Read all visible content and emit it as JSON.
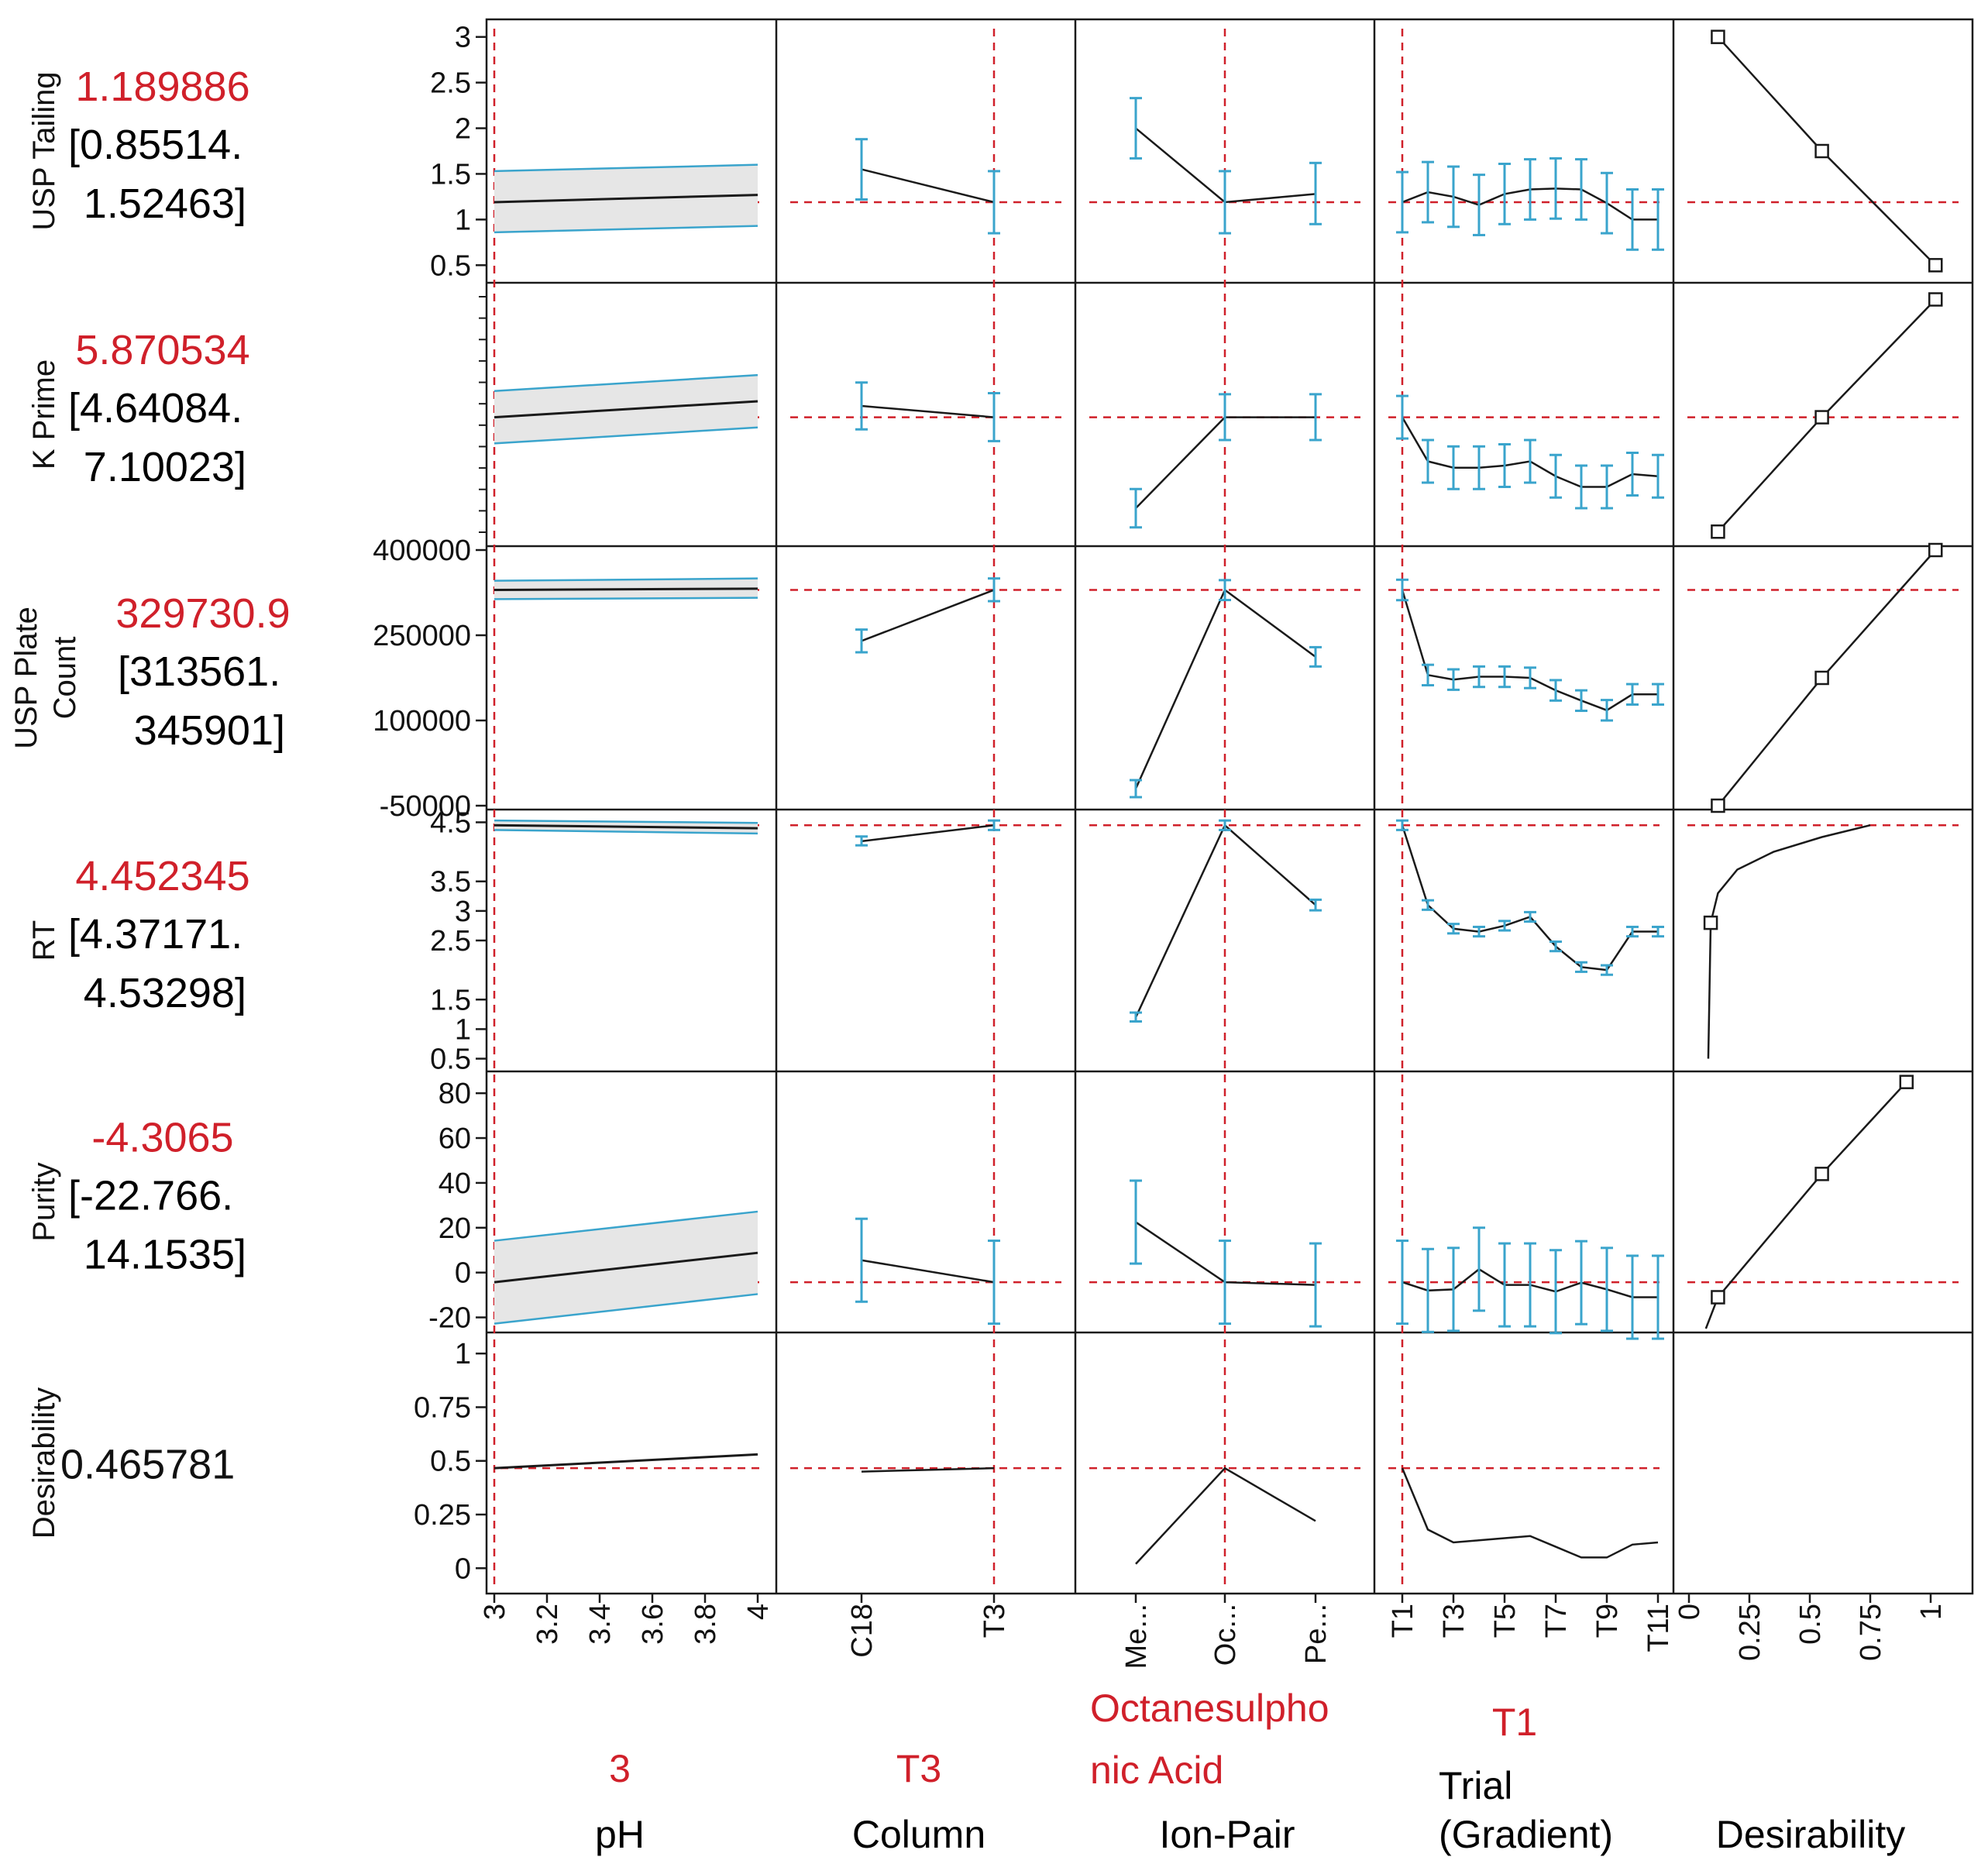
{
  "chart_data": {
    "type": "prediction_profiler",
    "factors": [
      {
        "key": "ph",
        "name": "pH",
        "current": "3",
        "ticks": [
          "3",
          "3.2",
          "3.4",
          "3.6",
          "3.8",
          "4"
        ],
        "range": [
          3,
          4
        ]
      },
      {
        "key": "column",
        "name": "Column",
        "current": "T3",
        "ticks": [
          "C18",
          "T3"
        ]
      },
      {
        "key": "ionpair",
        "name": "Ion-Pair",
        "current_lines": [
          "Octanesulpho",
          "nic Acid"
        ],
        "ticks": [
          "Me...",
          "Oc...",
          "Pe..."
        ]
      },
      {
        "key": "trial",
        "name_lines": [
          "Trial",
          "(Gradient)"
        ],
        "current": "T1",
        "ticks": [
          "T1",
          "T3",
          "T5",
          "T7",
          "T9",
          "T11"
        ]
      },
      {
        "key": "desir",
        "name": "Desirability",
        "ticks": [
          "0",
          "0.25",
          "0.5",
          "0.75",
          "1"
        ]
      }
    ],
    "responses": [
      {
        "key": "tailing",
        "name_lines": [
          "USP Tailing"
        ],
        "value": "1.189886",
        "ci_lines": [
          "[0.85514.",
          "1.52463]"
        ],
        "ylim": [
          0.35,
          3.15
        ],
        "yticks": [
          "3",
          "2.5",
          "2",
          "1.5",
          "1",
          "0.5"
        ],
        "current": 1.19,
        "ph": {
          "mean": [
            1.19,
            1.27
          ],
          "lo": [
            0.86,
            0.93
          ],
          "hi": [
            1.53,
            1.6
          ]
        },
        "column": {
          "mean": [
            1.55,
            1.19
          ],
          "lo": [
            1.22,
            0.85
          ],
          "hi": [
            1.88,
            1.53
          ]
        },
        "ionpair": {
          "mean": [
            2.0,
            1.19,
            1.28
          ],
          "lo": [
            1.67,
            0.85,
            0.95
          ],
          "hi": [
            2.33,
            1.53,
            1.62
          ]
        },
        "trial": {
          "mean": [
            1.19,
            1.3,
            1.25,
            1.16,
            1.28,
            1.33,
            1.34,
            1.33,
            1.18,
            1.0,
            1.0
          ],
          "half": 0.33
        },
        "desir": {
          "kind": "linear",
          "x": [
            0.12,
            0.55,
            1.02
          ],
          "y": [
            3.0,
            1.75,
            0.5
          ],
          "markers": [
            0,
            1,
            2
          ]
        }
      },
      {
        "key": "kprime",
        "name_lines": [
          "K Prime"
        ],
        "value": "5.870534",
        "ci_lines": [
          "[4.64084.",
          "7.10023]"
        ],
        "ylim": [
          0,
          12
        ],
        "yticks": [],
        "current": 5.87,
        "ph": {
          "mean": [
            5.87,
            6.62
          ],
          "lo": [
            4.64,
            5.39
          ],
          "hi": [
            7.1,
            7.85
          ]
        },
        "column": {
          "mean": [
            6.4,
            5.87
          ],
          "lo": [
            5.3,
            4.75
          ],
          "hi": [
            7.5,
            7.0
          ]
        },
        "ionpair": {
          "mean": [
            1.6,
            5.87,
            5.87
          ],
          "lo": [
            0.7,
            4.8,
            4.8
          ],
          "hi": [
            2.5,
            6.95,
            6.95
          ]
        },
        "trial": {
          "mean": [
            5.87,
            3.8,
            3.5,
            3.5,
            3.6,
            3.8,
            3.1,
            2.6,
            2.6,
            3.2,
            3.1
          ],
          "half": 1.0
        },
        "desir": {
          "kind": "linear",
          "x": [
            0.12,
            0.55,
            1.02
          ],
          "y": [
            0.5,
            5.87,
            11.4
          ],
          "markers": [
            0,
            1,
            2
          ]
        }
      },
      {
        "key": "plates",
        "name_lines": [
          "USP Plate",
          "Count"
        ],
        "value": "329730.9",
        "ci_lines": [
          "[313561.",
          "345901]"
        ],
        "ylim": [
          -50000,
          400000
        ],
        "yticks": [
          "400000",
          "250000",
          "100000",
          "-50000"
        ],
        "current": 329730,
        "ph": {
          "mean": [
            329730,
            332000
          ],
          "lo": [
            313561,
            316000
          ],
          "hi": [
            345901,
            350000
          ]
        },
        "column": {
          "mean": [
            240000,
            329730
          ],
          "lo": [
            220000,
            310000
          ],
          "hi": [
            260000,
            350000
          ]
        },
        "ionpair": {
          "mean": [
            -20000,
            329730,
            212000
          ],
          "lo": [
            -35000,
            312000,
            195000
          ],
          "hi": [
            -5000,
            347000,
            229000
          ]
        },
        "trial": {
          "mean": [
            329730,
            180000,
            172000,
            177000,
            177000,
            175000,
            153000,
            135000,
            118000,
            146000,
            146000
          ],
          "half": 18000
        },
        "desir": {
          "kind": "linear",
          "x": [
            0.12,
            0.55,
            1.02
          ],
          "y": [
            -50000,
            175000,
            400000
          ],
          "markers": [
            0,
            1,
            2
          ]
        }
      },
      {
        "key": "rt",
        "name_lines": [
          "RT"
        ],
        "value": "4.452345",
        "ci_lines": [
          "[4.37171.",
          "4.53298]"
        ],
        "ylim": [
          0.35,
          4.65
        ],
        "yticks": [
          "4.5",
          "3.5",
          "3",
          "2.5",
          "1.5",
          "1",
          "0.5"
        ],
        "current": 4.45,
        "ph": {
          "mean": [
            4.45,
            4.4
          ],
          "lo": [
            4.37,
            4.31
          ],
          "hi": [
            4.53,
            4.49
          ]
        },
        "column": {
          "mean": [
            4.18,
            4.45
          ],
          "lo": [
            4.11,
            4.37
          ],
          "hi": [
            4.26,
            4.53
          ]
        },
        "ionpair": {
          "mean": [
            1.2,
            4.45,
            3.1
          ],
          "lo": [
            1.13,
            4.37,
            3.01
          ],
          "hi": [
            1.28,
            4.53,
            3.19
          ]
        },
        "trial": {
          "mean": [
            4.45,
            3.1,
            2.7,
            2.65,
            2.75,
            2.9,
            2.4,
            2.05,
            2.0,
            2.65,
            2.65
          ],
          "half": 0.08
        },
        "desir": {
          "kind": "log",
          "x": [
            0.08,
            0.09,
            0.12,
            0.2,
            0.35,
            0.55,
            0.75
          ],
          "y": [
            0.5,
            2.8,
            3.3,
            3.7,
            4.0,
            4.25,
            4.45
          ],
          "markers": [
            1
          ]
        }
      },
      {
        "key": "purity",
        "name_lines": [
          "Purity"
        ],
        "value": "-4.3065",
        "ci_lines": [
          "[-22.766.",
          "14.1535]"
        ],
        "ylim": [
          -25,
          88
        ],
        "yticks": [
          "80",
          "60",
          "40",
          "20",
          "0",
          "-20"
        ],
        "current": -4.3,
        "ph": {
          "mean": [
            -4.3,
            8.8
          ],
          "lo": [
            -22.8,
            -9.6
          ],
          "hi": [
            14.2,
            27.2
          ]
        },
        "column": {
          "mean": [
            5.5,
            -4.3
          ],
          "lo": [
            -13,
            -22.8
          ],
          "hi": [
            24,
            14.2
          ]
        },
        "ionpair": {
          "mean": [
            22.5,
            -4.3,
            -5.5
          ],
          "lo": [
            4,
            -22.8,
            -24
          ],
          "hi": [
            41,
            14.2,
            13
          ]
        },
        "trial": {
          "mean": [
            -4.3,
            -8.0,
            -7.5,
            1.5,
            -5.5,
            -5.5,
            -8.5,
            -4.5,
            -7.5,
            -11,
            -11
          ],
          "half": 18.5
        },
        "desir": {
          "kind": "linear",
          "x": [
            0.07,
            0.12,
            0.55,
            0.9
          ],
          "y": [
            -25,
            -11,
            44,
            85
          ],
          "markers": [
            1,
            2,
            3
          ]
        }
      },
      {
        "key": "desirability",
        "name_lines": [
          "Desirability"
        ],
        "value": "0.465781",
        "ci_lines": [],
        "ylim": [
          -0.1,
          1.08
        ],
        "yticks": [
          "1",
          "0.75",
          "0.5",
          "0.25",
          "0"
        ],
        "current": 0.466,
        "ph": {
          "mean": [
            0.466,
            0.53
          ]
        },
        "column": {
          "mean": [
            0.45,
            0.466
          ]
        },
        "ionpair": {
          "mean": [
            0.02,
            0.466,
            0.22
          ]
        },
        "trial": {
          "mean": [
            0.466,
            0.18,
            0.12,
            0.13,
            0.14,
            0.15,
            0.1,
            0.05,
            0.05,
            0.11,
            0.12
          ]
        },
        "desir": {
          "kind": "none"
        }
      }
    ]
  },
  "colors": {
    "accent": "#d0202a",
    "band": "#3aa4cc",
    "line": "#1a1a1a",
    "fill": "#e6e6e6"
  }
}
